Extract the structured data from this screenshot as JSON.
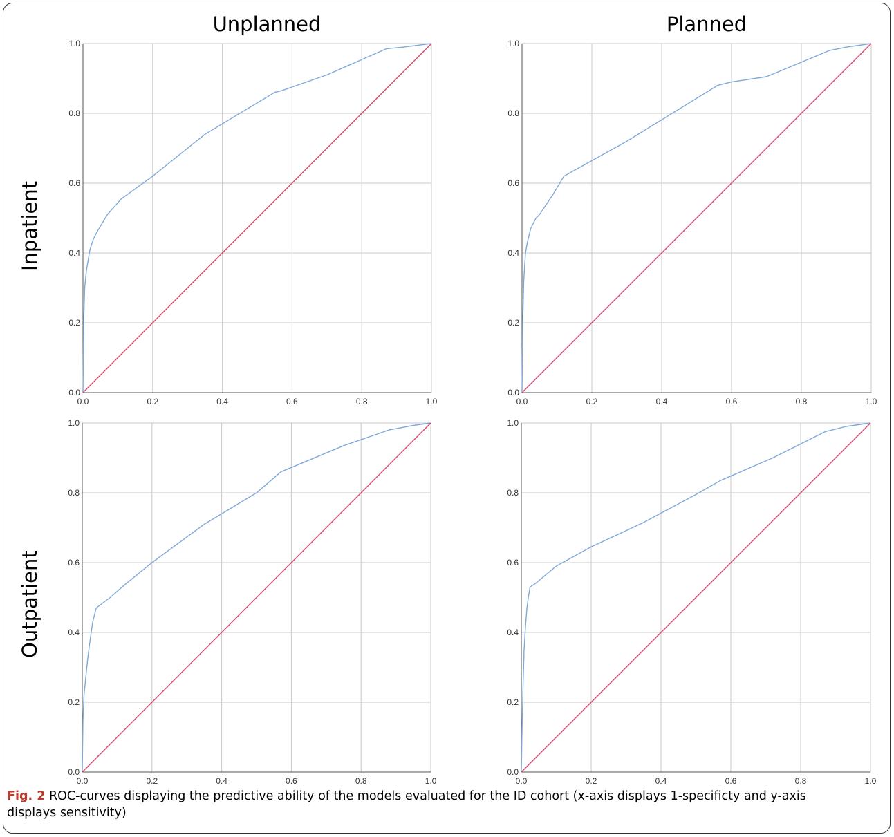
{
  "figure": {
    "column_titles": [
      "Unplanned",
      "Planned"
    ],
    "row_titles": [
      "Inpatient",
      "Outpatient"
    ],
    "caption_label": "Fig. 2",
    "caption_text": "ROC-curves displaying the predictive ability of the models evaluated for the ID cohort (x-axis displays 1-specificty and y-axis displays sensitivity)"
  },
  "colors": {
    "roc_curve": "#7fa9d9",
    "reference_line": "#d9466a",
    "grid": "#c8c8c8",
    "axis": "#555555"
  },
  "chart_data": [
    {
      "type": "line",
      "panel": "Inpatient - Unplanned",
      "xlim": [
        0,
        1
      ],
      "ylim": [
        0,
        1
      ],
      "xticks": [
        "0.0",
        "0.2",
        "0.4",
        "0.6",
        "0.8",
        "1.0"
      ],
      "yticks": [
        "0.0",
        "0.2",
        "0.4",
        "0.6",
        "0.8",
        "1.0"
      ],
      "grid": true,
      "series": [
        {
          "role": "roc",
          "x": [
            0,
            0.002,
            0.005,
            0.01,
            0.015,
            0.02,
            0.03,
            0.04,
            0.07,
            0.11,
            0.2,
            0.35,
            0.55,
            0.57,
            0.7,
            0.87,
            0.92,
            1.0
          ],
          "y": [
            0,
            0.2,
            0.3,
            0.35,
            0.38,
            0.41,
            0.44,
            0.46,
            0.51,
            0.555,
            0.62,
            0.74,
            0.86,
            0.865,
            0.91,
            0.985,
            0.99,
            1.0
          ]
        },
        {
          "role": "reference",
          "x": [
            0,
            1
          ],
          "y": [
            0,
            1
          ]
        }
      ]
    },
    {
      "type": "line",
      "panel": "Inpatient - Planned",
      "xlim": [
        0,
        1
      ],
      "ylim": [
        0,
        1
      ],
      "xticks": [
        "0.0",
        "0.2",
        "0.4",
        "0.6",
        "0.8",
        "1.0"
      ],
      "yticks": [
        "0.0",
        "0.2",
        "0.4",
        "0.6",
        "0.8",
        "1.0"
      ],
      "grid": true,
      "series": [
        {
          "role": "roc",
          "x": [
            0,
            0.002,
            0.005,
            0.01,
            0.015,
            0.02,
            0.025,
            0.03,
            0.04,
            0.05,
            0.07,
            0.09,
            0.12,
            0.3,
            0.56,
            0.6,
            0.7,
            0.88,
            0.93,
            1.0
          ],
          "y": [
            0,
            0.2,
            0.32,
            0.4,
            0.43,
            0.45,
            0.47,
            0.48,
            0.5,
            0.51,
            0.54,
            0.57,
            0.62,
            0.72,
            0.88,
            0.89,
            0.905,
            0.98,
            0.99,
            1.0
          ]
        },
        {
          "role": "reference",
          "x": [
            0,
            1
          ],
          "y": [
            0,
            1
          ]
        }
      ]
    },
    {
      "type": "line",
      "panel": "Outpatient - Unplanned",
      "xlim": [
        0,
        1
      ],
      "ylim": [
        0,
        1
      ],
      "xticks": [
        "0.0",
        "0.2",
        "0.4",
        "0.6",
        "0.8",
        "1.0"
      ],
      "yticks": [
        "0.0",
        "0.2",
        "0.4",
        "0.6",
        "0.8",
        "1.0"
      ],
      "grid": true,
      "series": [
        {
          "role": "roc",
          "x": [
            0,
            0.002,
            0.005,
            0.01,
            0.015,
            0.02,
            0.03,
            0.04,
            0.08,
            0.12,
            0.2,
            0.35,
            0.5,
            0.57,
            0.75,
            0.88,
            0.95,
            1.0
          ],
          "y": [
            0,
            0.15,
            0.22,
            0.27,
            0.32,
            0.36,
            0.43,
            0.47,
            0.5,
            0.535,
            0.6,
            0.71,
            0.8,
            0.86,
            0.935,
            0.98,
            0.993,
            1.0
          ]
        },
        {
          "role": "reference",
          "x": [
            0,
            1
          ],
          "y": [
            0,
            1
          ]
        }
      ]
    },
    {
      "type": "line",
      "panel": "Outpatient - Planned",
      "xlim": [
        0,
        1
      ],
      "ylim": [
        0,
        1
      ],
      "xticks": [
        "0.0",
        "0.2",
        "0.4",
        "0.6",
        "0.8",
        "1.0"
      ],
      "yticks": [
        "0.0",
        "0.2",
        "0.4",
        "0.6",
        "0.8",
        "1.0"
      ],
      "grid": true,
      "series": [
        {
          "role": "roc",
          "x": [
            0,
            0.002,
            0.005,
            0.008,
            0.012,
            0.016,
            0.02,
            0.025,
            0.04,
            0.1,
            0.2,
            0.35,
            0.5,
            0.57,
            0.72,
            0.87,
            0.93,
            1.0
          ],
          "y": [
            0,
            0.12,
            0.25,
            0.35,
            0.42,
            0.47,
            0.5,
            0.53,
            0.54,
            0.59,
            0.645,
            0.715,
            0.795,
            0.835,
            0.9,
            0.975,
            0.99,
            1.0
          ]
        },
        {
          "role": "reference",
          "x": [
            0,
            1
          ],
          "y": [
            0,
            1
          ]
        }
      ]
    }
  ]
}
